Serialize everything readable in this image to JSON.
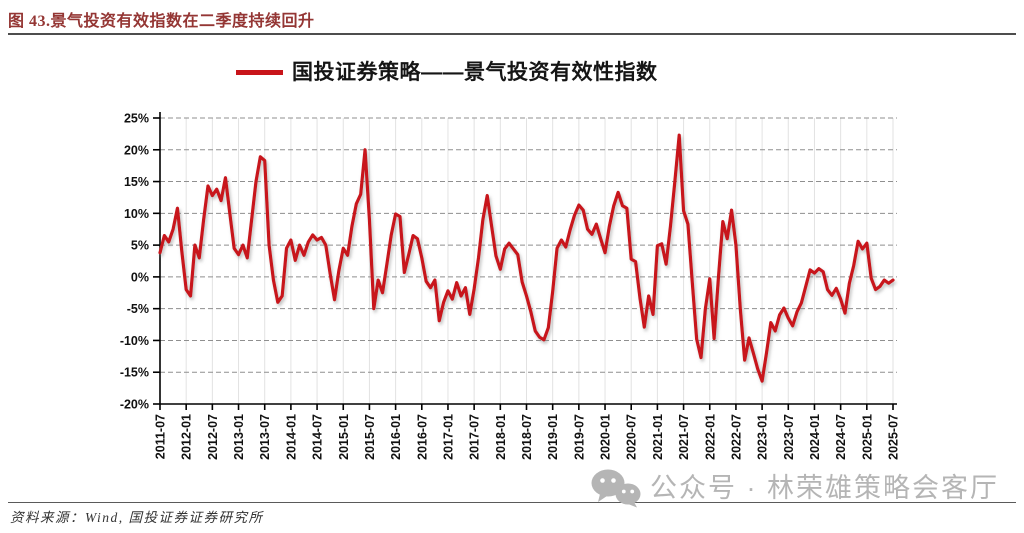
{
  "figure": {
    "title": "图 43.景气投资有效指数在二季度持续回升",
    "title_color": "#943634",
    "source": "资料来源：Wind, 国投证券证券研究所",
    "watermark": "公众号 · 林荣雄策略会客厅",
    "watermark_color": "#b5b5b5"
  },
  "chart_data": {
    "type": "line",
    "title": "",
    "legend_position": "top-center",
    "legend": [
      {
        "name": "国投证券策略——景气投资有效性指数",
        "color": "#c8141a"
      }
    ],
    "frequency": "monthly",
    "x_monthly_start": "2011-07",
    "x_monthly_end": "2025-07",
    "x_tick_labels": [
      "2011-07",
      "2012-01",
      "2012-07",
      "2013-01",
      "2013-07",
      "2014-01",
      "2014-07",
      "2015-01",
      "2015-07",
      "2016-01",
      "2016-07",
      "2017-01",
      "2017-07",
      "2018-01",
      "2018-07",
      "2019-01",
      "2019-07",
      "2020-01",
      "2020-07",
      "2021-01",
      "2021-07",
      "2022-01",
      "2022-07",
      "2023-01",
      "2023-07",
      "2024-01",
      "2024-07",
      "2025-01",
      "2025-07"
    ],
    "y_ticks": [
      25,
      20,
      15,
      10,
      5,
      0,
      -5,
      -10,
      -15,
      -20
    ],
    "y_tick_labels": [
      "25%",
      "20%",
      "15%",
      "10%",
      "5%",
      "0%",
      "-5%",
      "-10%",
      "-15%",
      "-20%"
    ],
    "ylim": [
      -20,
      25
    ],
    "unit": "percent",
    "grid": {
      "horizontal": "dashed-gray",
      "vertical": "light-gray"
    },
    "series": [
      {
        "name": "国投证券策略——景气投资有效性指数",
        "values_pct": [
          3.8,
          6.5,
          5.5,
          7.5,
          10.8,
          4.0,
          -2.0,
          -3.0,
          5.0,
          3.0,
          9.0,
          14.3,
          12.8,
          13.8,
          12.0,
          15.6,
          10.0,
          4.5,
          3.5,
          5.0,
          3.0,
          9.0,
          15.0,
          18.9,
          18.3,
          5.0,
          -0.5,
          -4.0,
          -3.0,
          4.5,
          5.8,
          2.6,
          5.0,
          3.4,
          5.5,
          6.6,
          5.8,
          6.2,
          5.0,
          0.5,
          -3.6,
          1.0,
          4.5,
          3.4,
          8.0,
          11.5,
          13.0,
          20.0,
          9.0,
          -5.0,
          -0.5,
          -2.5,
          2.0,
          6.6,
          9.9,
          9.5,
          0.7,
          3.5,
          6.5,
          6.0,
          3.0,
          -0.7,
          -1.7,
          -0.5,
          -6.9,
          -4.0,
          -2.2,
          -3.5,
          -0.9,
          -3.0,
          -1.7,
          -5.9,
          -1.9,
          3.0,
          9.0,
          12.8,
          8.0,
          3.3,
          1.2,
          4.4,
          5.3,
          4.4,
          3.5,
          -0.8,
          -3.0,
          -5.5,
          -8.5,
          -9.5,
          -9.9,
          -8.0,
          -2.3,
          4.5,
          5.8,
          4.7,
          7.4,
          9.7,
          11.3,
          10.5,
          7.5,
          6.7,
          8.3,
          6.0,
          3.8,
          8.0,
          11.2,
          13.3,
          11.2,
          10.8,
          2.8,
          2.4,
          -3.3,
          -7.9,
          -3.0,
          -5.9,
          4.9,
          5.2,
          2.0,
          8.0,
          15.0,
          22.3,
          10.4,
          8.3,
          -0.9,
          -9.8,
          -12.7,
          -5.0,
          -0.3,
          -9.7,
          0.0,
          8.7,
          6.0,
          10.5,
          5.0,
          -5.0,
          -13.1,
          -9.6,
          -12.0,
          -14.5,
          -16.4,
          -12.0,
          -7.2,
          -8.5,
          -6.0,
          -4.9,
          -6.5,
          -7.7,
          -5.5,
          -4.1,
          -1.5,
          1.1,
          0.6,
          1.3,
          0.8,
          -2.0,
          -2.9,
          -1.8,
          -3.5,
          -5.7,
          -1.0,
          1.8,
          5.6,
          4.4,
          5.3,
          -0.2,
          -2.0,
          -1.5,
          -0.5,
          -1.0,
          -0.5
        ]
      }
    ]
  }
}
